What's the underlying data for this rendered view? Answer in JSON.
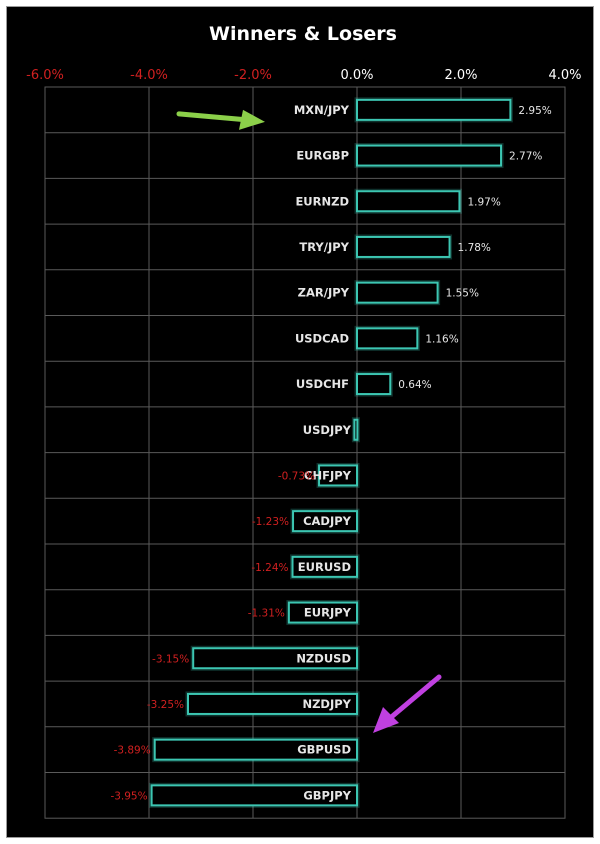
{
  "chart_data": {
    "type": "bar",
    "orientation": "horizontal",
    "title": "Winners & Losers",
    "xlabel": "",
    "ylabel": "",
    "xlim": [
      -6.0,
      4.0
    ],
    "x_ticks": [
      "-6.0%",
      "-4.0%",
      "-2.0%",
      "0.0%",
      "2.0%",
      "4.0%"
    ],
    "grid": true,
    "categories": [
      "MXN/JPY",
      "EURGBP",
      "EURNZD",
      "TRY/JPY",
      "ZAR/JPY",
      "USDCAD",
      "USDCHF",
      "USDJPY",
      "CHFJPY",
      "CADJPY",
      "EURUSD",
      "EURJPY",
      "NZDUSD",
      "NZDJPY",
      "GBPUSD",
      "GBPJPY"
    ],
    "values": [
      2.95,
      2.77,
      1.97,
      1.78,
      1.55,
      1.16,
      0.64,
      -0.05,
      -0.73,
      -1.23,
      -1.24,
      -1.31,
      -3.15,
      -3.25,
      -3.89,
      -3.95
    ],
    "data_labels": [
      "2.95%",
      "2.77%",
      "1.97%",
      "1.78%",
      "1.55%",
      "1.16%",
      "0.64%",
      "",
      "-0.73%",
      "-1.23%",
      "-1.24%",
      "-1.31%",
      "-3.15%",
      "-3.25%",
      "-3.89%",
      "-3.95%"
    ],
    "colors": {
      "background": "#000000",
      "bar_outline": "#3cc6b2",
      "grid": "#5a5a5a",
      "positive_label": "#e6e6e6",
      "negative_label": "#d02020",
      "negative_tick": "#d02020",
      "positive_tick": "#ffffff"
    },
    "annotations": [
      {
        "type": "arrow",
        "color": "#8cd04a",
        "points_to": "MXN/JPY"
      },
      {
        "type": "arrow",
        "color": "#c040e0",
        "points_to": "GBPUSD"
      }
    ]
  }
}
